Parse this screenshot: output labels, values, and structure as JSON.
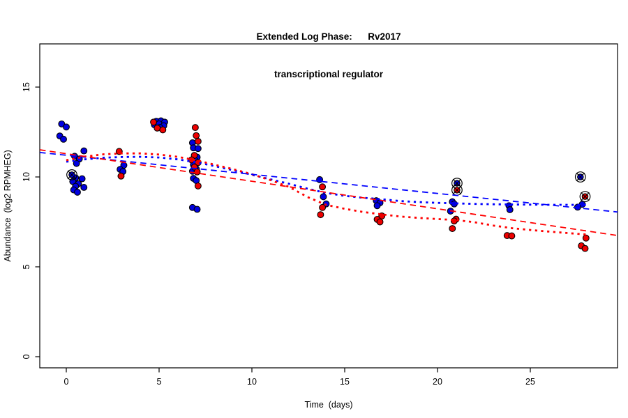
{
  "title": {
    "line1": "Extended Log Phase:      Rv2017",
    "line2": "transcriptional regulator"
  },
  "colors": {
    "point_red": "#ee0000",
    "point_blue": "#0000e0",
    "line_red": "#ff0000",
    "line_blue": "#0000ff",
    "point_stroke": "#000000",
    "axis": "#000000",
    "background": "#ffffff"
  },
  "chart_data": {
    "type": "scatter",
    "title": "Extended Log Phase: Rv2017 transcriptional regulator",
    "xlabel": "Time  (days)",
    "ylabel": "Abundance  (log2 RPMHEG)",
    "x_ticks": [
      0,
      5,
      10,
      15,
      20,
      25
    ],
    "y_ticks": [
      0,
      5,
      10,
      15
    ],
    "xlim": [
      -1.43,
      29.7
    ],
    "ylim": [
      -0.62,
      17.4
    ],
    "grid": false,
    "legend": "none",
    "series": [
      {
        "name": "blue-samples",
        "kind": "points",
        "color_key": "point_blue",
        "points": [
          [
            -0.25,
            12.95
          ],
          [
            0.0,
            12.78
          ],
          [
            -0.35,
            12.28
          ],
          [
            -0.15,
            12.1
          ],
          [
            0.95,
            11.45
          ],
          [
            0.45,
            11.15
          ],
          [
            0.7,
            11.0
          ],
          [
            0.55,
            10.75
          ],
          [
            0.5,
            9.95
          ],
          [
            0.85,
            9.9
          ],
          [
            0.35,
            9.75
          ],
          [
            0.65,
            9.62
          ],
          [
            0.5,
            9.48
          ],
          [
            0.95,
            9.42
          ],
          [
            0.4,
            9.28
          ],
          [
            0.6,
            9.15
          ],
          [
            3.1,
            10.65
          ],
          [
            2.9,
            10.42
          ],
          [
            3.05,
            10.3
          ],
          [
            4.85,
            13.1
          ],
          [
            5.1,
            13.12
          ],
          [
            5.3,
            13.05
          ],
          [
            4.75,
            12.9
          ],
          [
            5.0,
            12.95
          ],
          [
            5.25,
            12.85
          ],
          [
            5.05,
            12.75
          ],
          [
            6.8,
            11.9
          ],
          [
            6.85,
            11.62
          ],
          [
            7.1,
            11.58
          ],
          [
            7.05,
            11.1
          ],
          [
            6.95,
            10.9
          ],
          [
            6.85,
            10.68
          ],
          [
            7.0,
            10.45
          ],
          [
            6.8,
            10.32
          ],
          [
            6.85,
            9.92
          ],
          [
            7.0,
            9.8
          ],
          [
            6.8,
            8.3
          ],
          [
            7.05,
            8.2
          ],
          [
            13.65,
            9.85
          ],
          [
            13.85,
            8.9
          ],
          [
            14.0,
            8.5
          ],
          [
            16.7,
            8.68
          ],
          [
            16.9,
            8.56
          ],
          [
            16.75,
            8.4
          ],
          [
            20.8,
            8.62
          ],
          [
            20.9,
            8.5
          ],
          [
            20.7,
            8.1
          ],
          [
            23.85,
            8.4
          ],
          [
            23.9,
            8.18
          ],
          [
            27.8,
            8.48
          ],
          [
            27.55,
            8.32
          ]
        ]
      },
      {
        "name": "red-samples",
        "kind": "points",
        "color_key": "point_red",
        "points": [
          [
            2.85,
            11.42
          ],
          [
            2.95,
            10.05
          ],
          [
            4.7,
            13.05
          ],
          [
            4.9,
            12.72
          ],
          [
            5.2,
            12.62
          ],
          [
            6.95,
            12.75
          ],
          [
            7.0,
            12.3
          ],
          [
            7.1,
            11.98
          ],
          [
            6.9,
            11.2
          ],
          [
            6.75,
            10.95
          ],
          [
            7.1,
            10.8
          ],
          [
            6.9,
            10.55
          ],
          [
            7.05,
            10.28
          ],
          [
            7.1,
            9.5
          ],
          [
            13.8,
            9.45
          ],
          [
            13.8,
            8.3
          ],
          [
            13.7,
            7.9
          ],
          [
            17.0,
            7.83
          ],
          [
            16.75,
            7.64
          ],
          [
            16.9,
            7.5
          ],
          [
            21.0,
            7.65
          ],
          [
            20.9,
            7.55
          ],
          [
            20.8,
            7.13
          ],
          [
            23.75,
            6.74
          ],
          [
            24.0,
            6.72
          ],
          [
            28.0,
            6.6
          ],
          [
            27.75,
            6.17
          ],
          [
            27.95,
            6.02
          ]
        ]
      },
      {
        "name": "blue-circled-outliers",
        "kind": "circled-points",
        "color_key": "point_blue",
        "points": [
          [
            0.3,
            10.12
          ],
          [
            21.05,
            9.65
          ],
          [
            27.7,
            10.0
          ]
        ]
      },
      {
        "name": "red-circled-outliers",
        "kind": "circled-points",
        "color_key": "point_red",
        "points": [
          [
            21.05,
            9.27
          ],
          [
            27.95,
            8.91
          ]
        ]
      },
      {
        "name": "blue-dotted-trend",
        "kind": "line",
        "dash": "dot",
        "color_key": "line_blue",
        "points": [
          [
            0,
            10.85
          ],
          [
            1,
            10.98
          ],
          [
            2,
            11.07
          ],
          [
            3,
            11.11
          ],
          [
            4,
            11.12
          ],
          [
            5,
            11.08
          ],
          [
            6,
            10.98
          ],
          [
            7,
            10.82
          ],
          [
            8,
            10.6
          ],
          [
            9,
            10.37
          ],
          [
            10,
            10.12
          ],
          [
            11,
            9.87
          ],
          [
            12,
            9.62
          ],
          [
            13,
            9.35
          ],
          [
            14,
            9.11
          ],
          [
            15,
            8.95
          ],
          [
            16,
            8.84
          ],
          [
            17,
            8.76
          ],
          [
            18,
            8.66
          ],
          [
            19,
            8.6
          ],
          [
            20,
            8.56
          ],
          [
            21,
            8.53
          ],
          [
            22,
            8.5
          ],
          [
            23,
            8.48
          ],
          [
            24,
            8.47
          ],
          [
            25,
            8.46
          ],
          [
            26,
            8.45
          ],
          [
            27,
            8.45
          ],
          [
            28,
            8.44
          ]
        ]
      },
      {
        "name": "red-dotted-trend",
        "kind": "line",
        "dash": "dot",
        "color_key": "line_red",
        "points": [
          [
            0,
            10.93
          ],
          [
            1,
            11.13
          ],
          [
            2,
            11.26
          ],
          [
            3,
            11.31
          ],
          [
            4,
            11.31
          ],
          [
            5,
            11.25
          ],
          [
            6,
            11.12
          ],
          [
            7,
            10.93
          ],
          [
            8,
            10.68
          ],
          [
            9,
            10.43
          ],
          [
            10,
            10.15
          ],
          [
            11,
            9.82
          ],
          [
            12,
            9.45
          ],
          [
            13,
            8.88
          ],
          [
            14,
            8.45
          ],
          [
            15,
            8.23
          ],
          [
            16,
            8.05
          ],
          [
            17,
            7.92
          ],
          [
            18,
            7.8
          ],
          [
            19,
            7.72
          ],
          [
            20,
            7.66
          ],
          [
            21,
            7.6
          ],
          [
            22,
            7.48
          ],
          [
            23,
            7.3
          ],
          [
            24,
            7.15
          ],
          [
            25,
            7.05
          ],
          [
            26,
            6.96
          ],
          [
            27,
            6.88
          ],
          [
            28,
            6.8
          ]
        ]
      },
      {
        "name": "blue-dashed-trend",
        "kind": "line",
        "dash": "long",
        "color_key": "line_blue",
        "points": [
          [
            -1.43,
            11.36
          ],
          [
            29.7,
            8.05
          ]
        ]
      },
      {
        "name": "red-dashed-trend",
        "kind": "line",
        "dash": "long",
        "color_key": "line_red",
        "points": [
          [
            -1.43,
            11.51
          ],
          [
            29.7,
            6.74
          ]
        ]
      }
    ]
  }
}
